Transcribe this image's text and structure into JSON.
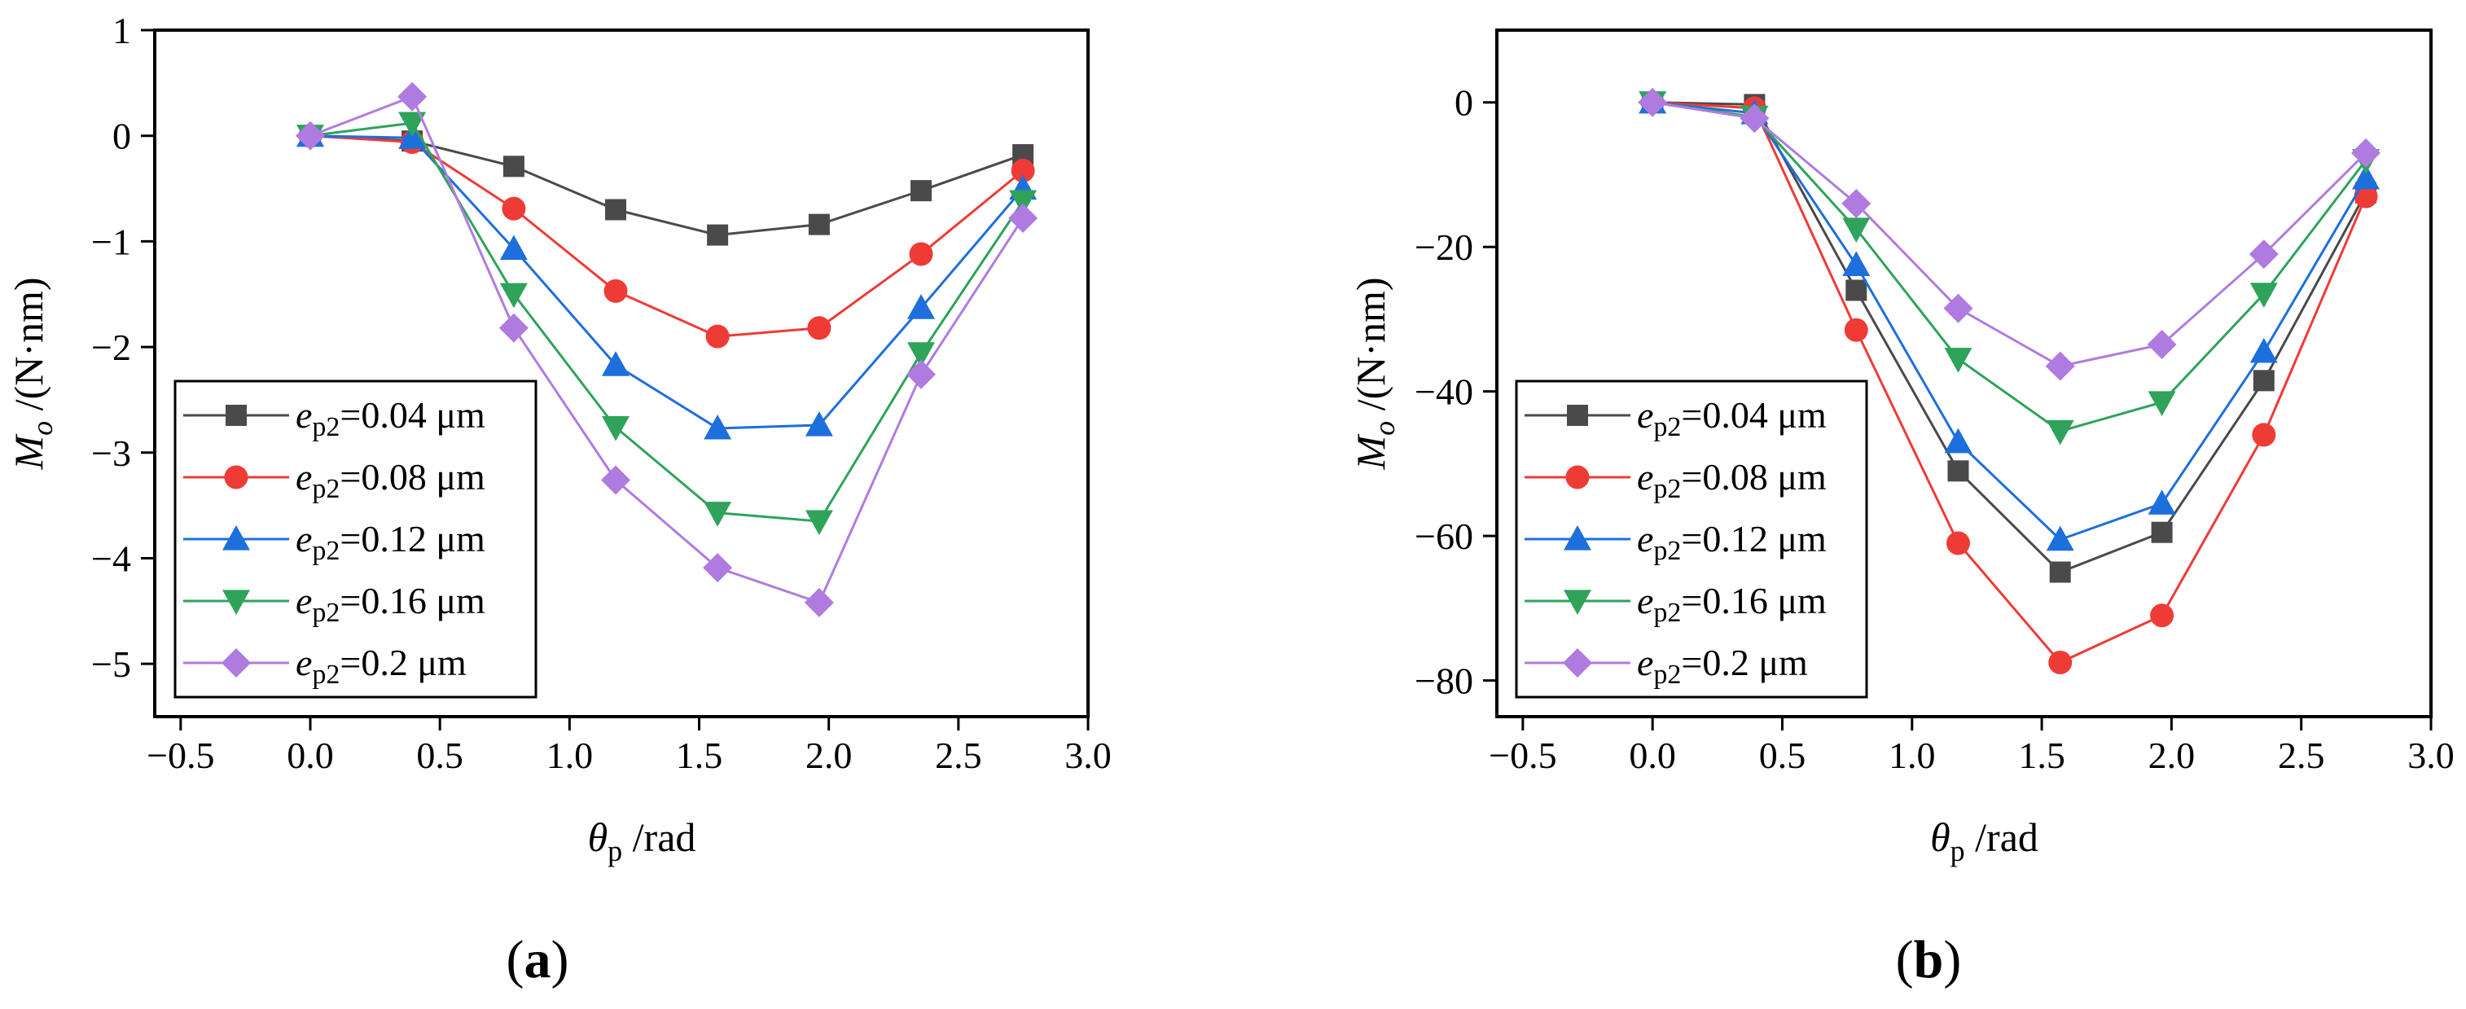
{
  "chart_data": [
    {
      "type": "line",
      "panel_label": "(a)",
      "xlabel": {
        "var": "θ",
        "sub": "p",
        "unit": " /rad"
      },
      "ylabel": {
        "var": "M",
        "sub": "o",
        "unit": " /(N·nm)"
      },
      "xlim": [
        -0.6,
        3.0
      ],
      "ylim": [
        -5.5,
        1.0
      ],
      "xticks": [
        -0.5,
        0.0,
        0.5,
        1.0,
        1.5,
        2.0,
        2.5,
        3.0
      ],
      "xtick_labels": [
        "−0.5",
        "0.0",
        "0.5",
        "1.0",
        "1.5",
        "2.0",
        "2.5",
        "3.0"
      ],
      "yticks": [
        1,
        0,
        -1,
        -2,
        -3,
        -4,
        -5
      ],
      "ytick_labels": [
        "1",
        "0",
        "−1",
        "−2",
        "−3",
        "−4",
        "−5"
      ],
      "legend_position": "bottom-left",
      "x": [
        0.0,
        0.393,
        0.785,
        1.178,
        1.571,
        1.963,
        2.356,
        2.749
      ],
      "series": [
        {
          "name_var": "e",
          "name_sub": "p2",
          "name_rest": "=0.04 μm",
          "color": "#4a4a4a",
          "marker": "square",
          "values": [
            0.0,
            -0.05,
            -0.29,
            -0.7,
            -0.94,
            -0.84,
            -0.52,
            -0.18
          ]
        },
        {
          "name_var": "e",
          "name_sub": "p2",
          "name_rest": "=0.08 μm",
          "color": "#ef3b36",
          "marker": "circle",
          "values": [
            0.0,
            -0.06,
            -0.69,
            -1.47,
            -1.9,
            -1.82,
            -1.12,
            -0.33
          ]
        },
        {
          "name_var": "e",
          "name_sub": "p2",
          "name_rest": "=0.12 μm",
          "color": "#1d6fdc",
          "marker": "triangle-up",
          "values": [
            0.0,
            -0.02,
            -1.07,
            -2.17,
            -2.77,
            -2.74,
            -1.63,
            -0.5
          ]
        },
        {
          "name_var": "e",
          "name_sub": "p2",
          "name_rest": "=0.16 μm",
          "color": "#2fa35a",
          "marker": "triangle-down",
          "values": [
            0.0,
            0.12,
            -1.5,
            -2.76,
            -3.57,
            -3.65,
            -2.06,
            -0.62
          ]
        },
        {
          "name_var": "e",
          "name_sub": "p2",
          "name_rest": "=0.2 μm",
          "color": "#b07be0",
          "marker": "diamond",
          "values": [
            0.0,
            0.37,
            -1.82,
            -3.26,
            -4.09,
            -4.42,
            -2.26,
            -0.78
          ]
        }
      ]
    },
    {
      "type": "line",
      "panel_label": "(b)",
      "xlabel": {
        "var": "θ",
        "sub": "p",
        "unit": " /rad"
      },
      "ylabel": {
        "var": "M",
        "sub": "o",
        "unit": " /(N·nm)"
      },
      "xlim": [
        -0.6,
        3.0
      ],
      "ylim": [
        -85,
        10
      ],
      "xticks": [
        -0.5,
        0.0,
        0.5,
        1.0,
        1.5,
        2.0,
        2.5,
        3.0
      ],
      "xtick_labels": [
        "−0.5",
        "0.0",
        "0.5",
        "1.0",
        "1.5",
        "2.0",
        "2.5",
        "3.0"
      ],
      "yticks": [
        0,
        -20,
        -40,
        -60,
        -80
      ],
      "ytick_labels": [
        "0",
        "−20",
        "−40",
        "−60",
        "−80"
      ],
      "legend_position": "bottom-left",
      "x": [
        0.0,
        0.393,
        0.785,
        1.178,
        1.571,
        1.963,
        2.356,
        2.749
      ],
      "series": [
        {
          "name_var": "e",
          "name_sub": "p2",
          "name_rest": "=0.04 μm",
          "color": "#4a4a4a",
          "marker": "square",
          "values": [
            0.0,
            -0.3,
            -26.0,
            -51.0,
            -65.0,
            -59.5,
            -38.5,
            -12.5
          ]
        },
        {
          "name_var": "e",
          "name_sub": "p2",
          "name_rest": "=0.08 μm",
          "color": "#ef3b36",
          "marker": "circle",
          "values": [
            0.0,
            -0.8,
            -31.5,
            -61.0,
            -77.5,
            -71.0,
            -46.0,
            -13.0
          ]
        },
        {
          "name_var": "e",
          "name_sub": "p2",
          "name_rest": "=0.12 μm",
          "color": "#1d6fdc",
          "marker": "triangle-up",
          "values": [
            0.0,
            -1.5,
            -22.5,
            -47.0,
            -60.5,
            -55.5,
            -34.5,
            -10.5
          ]
        },
        {
          "name_var": "e",
          "name_sub": "p2",
          "name_rest": "=0.16 μm",
          "color": "#2fa35a",
          "marker": "triangle-down",
          "values": [
            0.0,
            -2.0,
            -17.5,
            -35.5,
            -45.5,
            -41.5,
            -26.5,
            -8.0
          ]
        },
        {
          "name_var": "e",
          "name_sub": "p2",
          "name_rest": "=0.2 μm",
          "color": "#b07be0",
          "marker": "diamond",
          "values": [
            0.0,
            -2.2,
            -14.0,
            -28.5,
            -36.5,
            -33.5,
            -21.0,
            -7.0
          ]
        }
      ]
    }
  ]
}
